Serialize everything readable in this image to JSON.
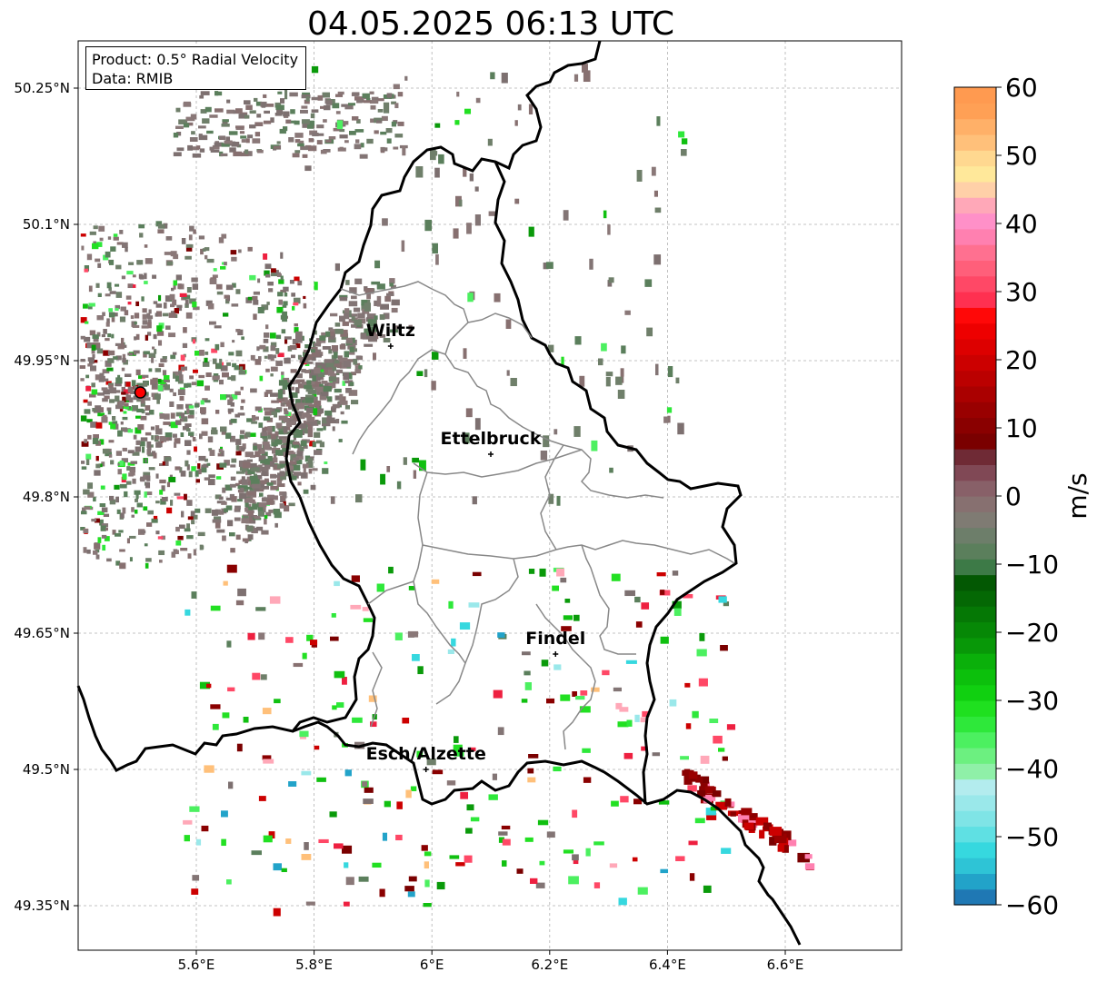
{
  "title": "04.05.2025 06:13 UTC",
  "info": {
    "product": "Product: 0.5° Radial Velocity",
    "data": "Data: RMIB"
  },
  "map": {
    "lon_range": [
      5.4,
      6.8
    ],
    "lat_range": [
      49.3,
      50.3
    ],
    "lon_ticks": [
      {
        "value": 5.6,
        "label": "5.6°E"
      },
      {
        "value": 5.8,
        "label": "5.8°E"
      },
      {
        "value": 6.0,
        "label": "6°E"
      },
      {
        "value": 6.2,
        "label": "6.2°E"
      },
      {
        "value": 6.4,
        "label": "6.4°E"
      },
      {
        "value": 6.6,
        "label": "6.6°E"
      }
    ],
    "lat_ticks": [
      {
        "value": 50.25,
        "label": "50.25°N"
      },
      {
        "value": 50.1,
        "label": "50.1°N"
      },
      {
        "value": 49.95,
        "label": "49.95°N"
      },
      {
        "value": 49.8,
        "label": "49.8°N"
      },
      {
        "value": 49.65,
        "label": "49.65°N"
      },
      {
        "value": 49.5,
        "label": "49.5°N"
      },
      {
        "value": 49.35,
        "label": "49.35°N"
      }
    ],
    "gridlines": true,
    "radar_site": {
      "lon": 5.505,
      "lat": 49.915
    },
    "cities": [
      {
        "name": "Wiltz",
        "lon": 5.93,
        "lat": 49.966
      },
      {
        "name": "Ettelbruck",
        "lon": 6.1,
        "lat": 49.847
      },
      {
        "name": "Findel",
        "lon": 6.21,
        "lat": 49.627
      },
      {
        "name": "Esch/Alzette",
        "lon": 5.99,
        "lat": 49.5
      }
    ]
  },
  "colorbar": {
    "label": "m/s",
    "min": -60,
    "max": 60,
    "ticks": [
      {
        "value": 60,
        "label": "60"
      },
      {
        "value": 50,
        "label": "50"
      },
      {
        "value": 40,
        "label": "40"
      },
      {
        "value": 30,
        "label": "30"
      },
      {
        "value": 20,
        "label": "20"
      },
      {
        "value": 10,
        "label": "10"
      },
      {
        "value": 0,
        "label": "0"
      },
      {
        "value": -10,
        "label": "−10"
      },
      {
        "value": -20,
        "label": "−20"
      },
      {
        "value": -30,
        "label": "−30"
      },
      {
        "value": -40,
        "label": "−40"
      },
      {
        "value": -50,
        "label": "−50"
      },
      {
        "value": -60,
        "label": "−60"
      }
    ],
    "colors": [
      "#1f78b4",
      "#22a3c9",
      "#2ec4d6",
      "#36d8df",
      "#5fe0e3",
      "#7fe4e6",
      "#9ae8ea",
      "#b3ecee",
      "#8ff0a8",
      "#6cf080",
      "#4cf060",
      "#2ee83a",
      "#1fe01f",
      "#10d010",
      "#0cc00c",
      "#0ab00a",
      "#089808",
      "#068806",
      "#057805",
      "#046804",
      "#035803",
      "#3d7a47",
      "#5b7f5c",
      "#6d7e6a",
      "#7f7b73",
      "#877070",
      "#886068",
      "#804855",
      "#6f2a35",
      "#7a0000",
      "#8a0000",
      "#990000",
      "#aa0000",
      "#bb0000",
      "#cc0000",
      "#dd0000",
      "#ee0000",
      "#ff0808",
      "#ff3050",
      "#ff4866",
      "#ff5f7a",
      "#ff7090",
      "#ff80b0",
      "#ff90c8",
      "#ffa8b8",
      "#ffd0a8",
      "#ffe89a",
      "#ffd890",
      "#ffc07a",
      "#ffb068",
      "#ffa055",
      "#ff9a50"
    ]
  }
}
